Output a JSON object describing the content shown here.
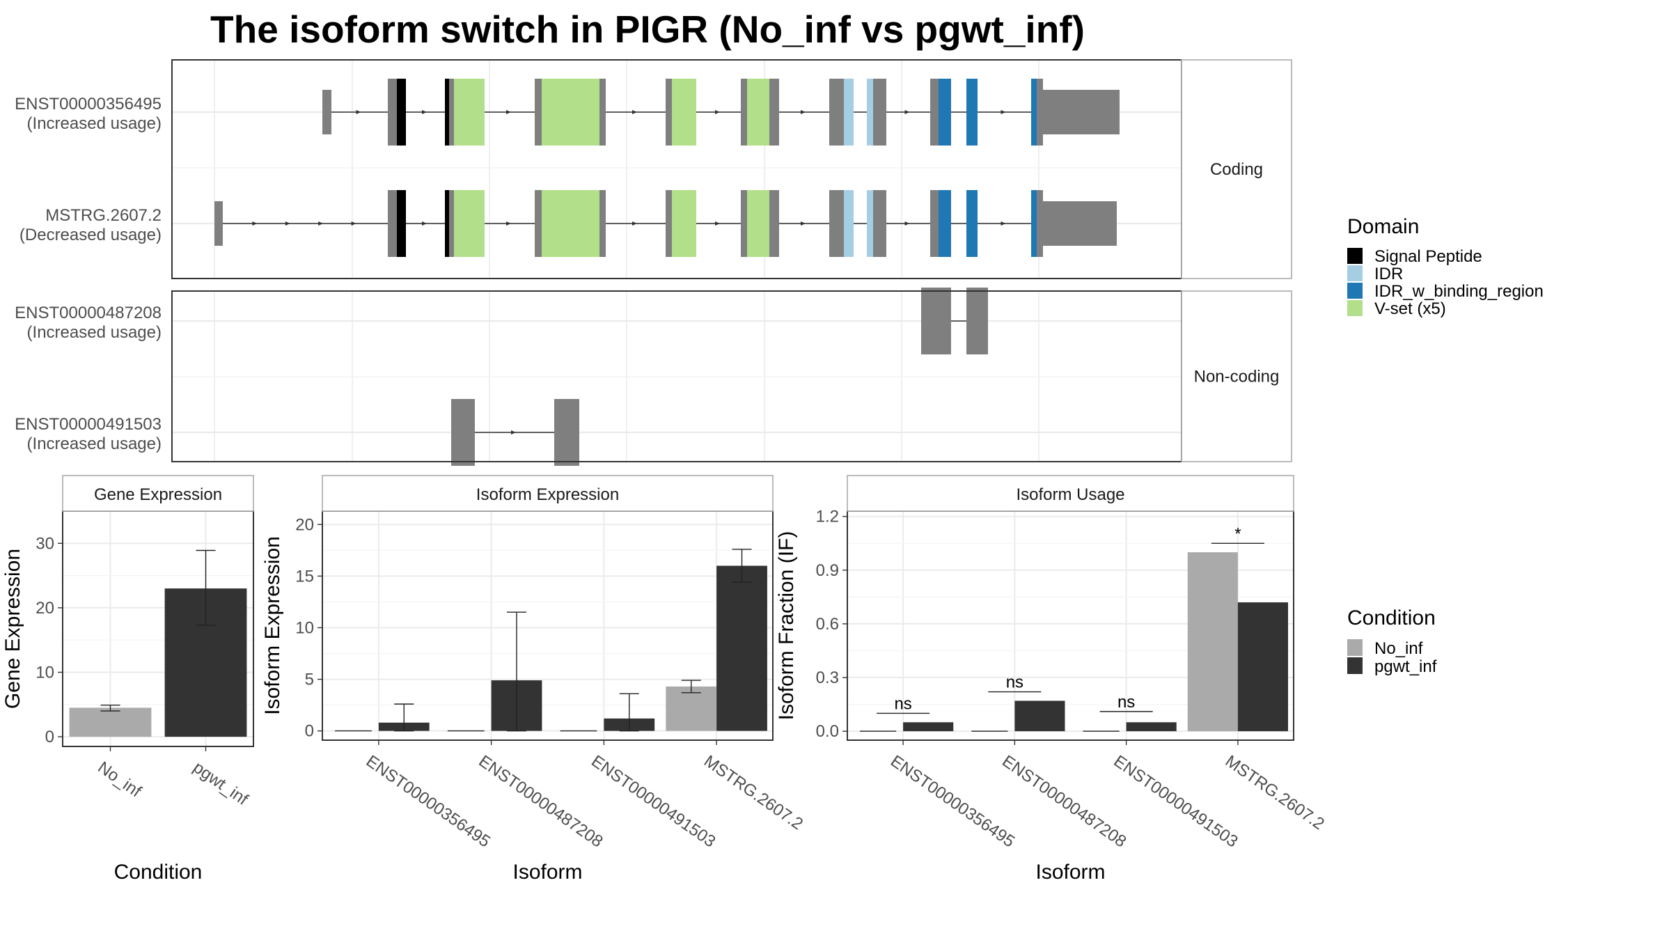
{
  "title": "The isoform switch in PIGR (No_inf vs pgwt_inf)",
  "structure": {
    "colors": {
      "exon": "#7f7f7f",
      "Signal Peptide": "#000000",
      "IDR": "#a6cee3",
      "IDR_w_binding_region": "#1f78b4",
      "V-set (x5)": "#b2df8a"
    },
    "panels": [
      {
        "strip": "Coding",
        "isoforms": [
          {
            "name": "ENST00000356495",
            "usage": "(Increased usage)",
            "exons": [
              {
                "type": "exon",
                "start": 155,
                "end": 168,
                "height": "short"
              },
              {
                "type": "exon",
                "start": 249,
                "end": 262
              },
              {
                "type": "Signal Peptide",
                "start": 262,
                "end": 275
              },
              {
                "type": "Signal Peptide",
                "start": 331,
                "end": 337
              },
              {
                "type": "exon",
                "start": 337,
                "end": 344
              },
              {
                "type": "V-set (x5)",
                "start": 344,
                "end": 388
              },
              {
                "type": "exon",
                "start": 460,
                "end": 470
              },
              {
                "type": "V-set (x5)",
                "start": 470,
                "end": 521
              },
              {
                "type": "V-set (x5)",
                "start": 521,
                "end": 553
              },
              {
                "type": "exon",
                "start": 553,
                "end": 562
              },
              {
                "type": "exon",
                "start": 648,
                "end": 657
              },
              {
                "type": "V-set (x5)",
                "start": 657,
                "end": 692
              },
              {
                "type": "exon",
                "start": 756,
                "end": 765
              },
              {
                "type": "V-set (x5)",
                "start": 765,
                "end": 797
              },
              {
                "type": "exon",
                "start": 797,
                "end": 811
              },
              {
                "type": "exon",
                "start": 883,
                "end": 904
              },
              {
                "type": "IDR",
                "start": 904,
                "end": 918
              },
              {
                "type": "IDR",
                "start": 937,
                "end": 946
              },
              {
                "type": "exon",
                "start": 946,
                "end": 965
              },
              {
                "type": "exon",
                "start": 1028,
                "end": 1040
              },
              {
                "type": "IDR_w_binding_region",
                "start": 1040,
                "end": 1058
              },
              {
                "type": "IDR_w_binding_region",
                "start": 1080,
                "end": 1096
              },
              {
                "type": "IDR_w_binding_region",
                "start": 1173,
                "end": 1181
              },
              {
                "type": "exon",
                "start": 1181,
                "end": 1190
              },
              {
                "type": "exon",
                "start": 1190,
                "end": 1300,
                "height": "short"
              }
            ]
          },
          {
            "name": "MSTRG.2607.2",
            "usage": "(Decreased usage)",
            "exons": [
              {
                "type": "exon",
                "start": 0,
                "end": 12,
                "height": "short"
              },
              {
                "type": "exon",
                "start": 249,
                "end": 262
              },
              {
                "type": "Signal Peptide",
                "start": 262,
                "end": 275
              },
              {
                "type": "Signal Peptide",
                "start": 331,
                "end": 337
              },
              {
                "type": "exon",
                "start": 337,
                "end": 344
              },
              {
                "type": "V-set (x5)",
                "start": 344,
                "end": 388
              },
              {
                "type": "exon",
                "start": 460,
                "end": 470
              },
              {
                "type": "V-set (x5)",
                "start": 470,
                "end": 521
              },
              {
                "type": "V-set (x5)",
                "start": 521,
                "end": 553
              },
              {
                "type": "exon",
                "start": 553,
                "end": 562
              },
              {
                "type": "exon",
                "start": 648,
                "end": 657
              },
              {
                "type": "V-set (x5)",
                "start": 657,
                "end": 692
              },
              {
                "type": "exon",
                "start": 756,
                "end": 765
              },
              {
                "type": "V-set (x5)",
                "start": 765,
                "end": 797
              },
              {
                "type": "exon",
                "start": 797,
                "end": 811
              },
              {
                "type": "exon",
                "start": 883,
                "end": 904
              },
              {
                "type": "IDR",
                "start": 904,
                "end": 918
              },
              {
                "type": "IDR",
                "start": 937,
                "end": 946
              },
              {
                "type": "exon",
                "start": 946,
                "end": 965
              },
              {
                "type": "exon",
                "start": 1028,
                "end": 1040
              },
              {
                "type": "IDR_w_binding_region",
                "start": 1040,
                "end": 1058
              },
              {
                "type": "IDR_w_binding_region",
                "start": 1080,
                "end": 1096
              },
              {
                "type": "IDR_w_binding_region",
                "start": 1173,
                "end": 1181
              },
              {
                "type": "exon",
                "start": 1181,
                "end": 1190
              },
              {
                "type": "exon",
                "start": 1190,
                "end": 1296,
                "height": "short"
              }
            ]
          }
        ]
      },
      {
        "strip": "Non-coding",
        "isoforms": [
          {
            "name": "ENST00000487208",
            "usage": "(Increased usage)",
            "exons": [
              {
                "type": "exon",
                "start": 1015,
                "end": 1058
              },
              {
                "type": "exon",
                "start": 1080,
                "end": 1111
              }
            ]
          },
          {
            "name": "ENST00000491503",
            "usage": "(Increased usage)",
            "exons": [
              {
                "type": "exon",
                "start": 340,
                "end": 374
              },
              {
                "type": "exon",
                "start": 488,
                "end": 524
              }
            ]
          }
        ]
      }
    ],
    "legend": {
      "title": "Domain",
      "items": [
        "Signal Peptide",
        "IDR",
        "IDR_w_binding_region",
        "V-set (x5)"
      ]
    }
  },
  "chart_data": [
    {
      "type": "bar",
      "strip": "Gene Expression",
      "xlabel": "Condition",
      "ylabel": "Gene Expression",
      "categories": [
        "No_inf",
        "pgwt_inf"
      ],
      "values": [
        4.5,
        23.0
      ],
      "error": [
        [
          4.0,
          4.9
        ],
        [
          17.3,
          28.9
        ]
      ],
      "colors": [
        "#aaaaaa",
        "#333333"
      ],
      "ylim": [
        -1.5,
        35
      ],
      "yticks": [
        0,
        10,
        20,
        30
      ]
    },
    {
      "type": "bar",
      "strip": "Isoform Expression",
      "xlabel": "Isoform",
      "ylabel": "Isoform Expression",
      "categories": [
        "ENST00000356495",
        "ENST00000487208",
        "ENST00000491503",
        "MSTRG.2607.2"
      ],
      "series": [
        {
          "name": "No_inf",
          "color": "#aaaaaa",
          "values": [
            0,
            0,
            0,
            4.3
          ],
          "error": [
            [
              0,
              0
            ],
            [
              0,
              0
            ],
            [
              0,
              0
            ],
            [
              3.7,
              4.9
            ]
          ]
        },
        {
          "name": "pgwt_inf",
          "color": "#333333",
          "values": [
            0.8,
            4.9,
            1.2,
            16.0
          ],
          "error": [
            [
              0,
              2.6
            ],
            [
              0,
              11.5
            ],
            [
              0,
              3.6
            ],
            [
              14.4,
              17.6
            ]
          ]
        }
      ],
      "ylim": [
        -0.9,
        21.3
      ],
      "yticks": [
        0,
        5,
        10,
        15,
        20
      ]
    },
    {
      "type": "bar",
      "strip": "Isoform Usage",
      "xlabel": "Isoform",
      "ylabel": "Isoform Fraction (IF)",
      "categories": [
        "ENST00000356495",
        "ENST00000487208",
        "ENST00000491503",
        "MSTRG.2607.2"
      ],
      "series": [
        {
          "name": "No_inf",
          "color": "#aaaaaa",
          "values": [
            0,
            0,
            0,
            1.0
          ]
        },
        {
          "name": "pgwt_inf",
          "color": "#333333",
          "values": [
            0.05,
            0.17,
            0.05,
            0.72
          ]
        }
      ],
      "significance": [
        "ns",
        "ns",
        "ns",
        "*"
      ],
      "significance_y": [
        0.1,
        0.22,
        0.11,
        1.05
      ],
      "ylim": [
        -0.05,
        1.23
      ],
      "yticks": [
        "0.0",
        "0.3",
        "0.6",
        "0.9",
        "1.2"
      ]
    }
  ],
  "condition_legend": {
    "title": "Condition",
    "items": [
      {
        "name": "No_inf",
        "color": "#aaaaaa"
      },
      {
        "name": "pgwt_inf",
        "color": "#333333"
      }
    ]
  }
}
